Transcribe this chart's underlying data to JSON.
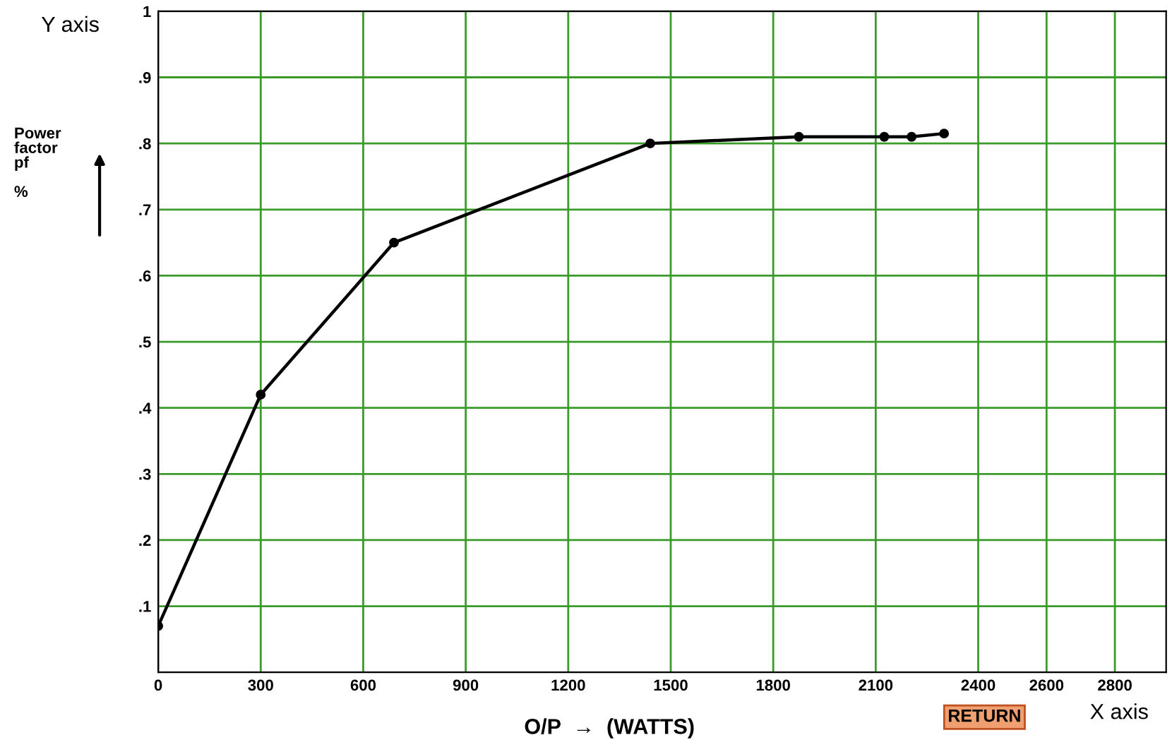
{
  "chart_data": {
    "type": "line",
    "xlabel": "O/P  →  (WATTS)",
    "ylabel": "Power\nfactor\npf\n\n%",
    "x": [
      0,
      300,
      690,
      1440,
      1875,
      2125,
      2205,
      2300
    ],
    "series": [
      {
        "color": "#000000",
        "values": [
          0.07,
          0.42,
          0.65,
          0.8,
          0.81,
          0.81,
          0.81,
          0.815
        ]
      }
    ],
    "xlim": [
      0,
      2950
    ],
    "xticks": [
      0,
      300,
      600,
      900,
      1200,
      1500,
      1800,
      2100,
      2400,
      2600,
      2800
    ],
    "ylim": [
      0,
      1
    ],
    "yticks": [
      {
        "value": 0.1,
        "label": ".1"
      },
      {
        "value": 0.2,
        "label": ".2"
      },
      {
        "value": 0.3,
        "label": ".3"
      },
      {
        "value": 0.4,
        "label": ".4"
      },
      {
        "value": 0.5,
        "label": ".5"
      },
      {
        "value": 0.6,
        "label": ".6"
      },
      {
        "value": 0.7,
        "label": ".7"
      },
      {
        "value": 0.8,
        "label": ".8"
      },
      {
        "value": 0.9,
        "label": ".9"
      },
      {
        "value": 1,
        "label": "1"
      }
    ],
    "grid": true,
    "marker": "circle",
    "line_style": "solid",
    "annotations": [
      "Y axis",
      "X axis",
      "RETURN"
    ]
  }
}
